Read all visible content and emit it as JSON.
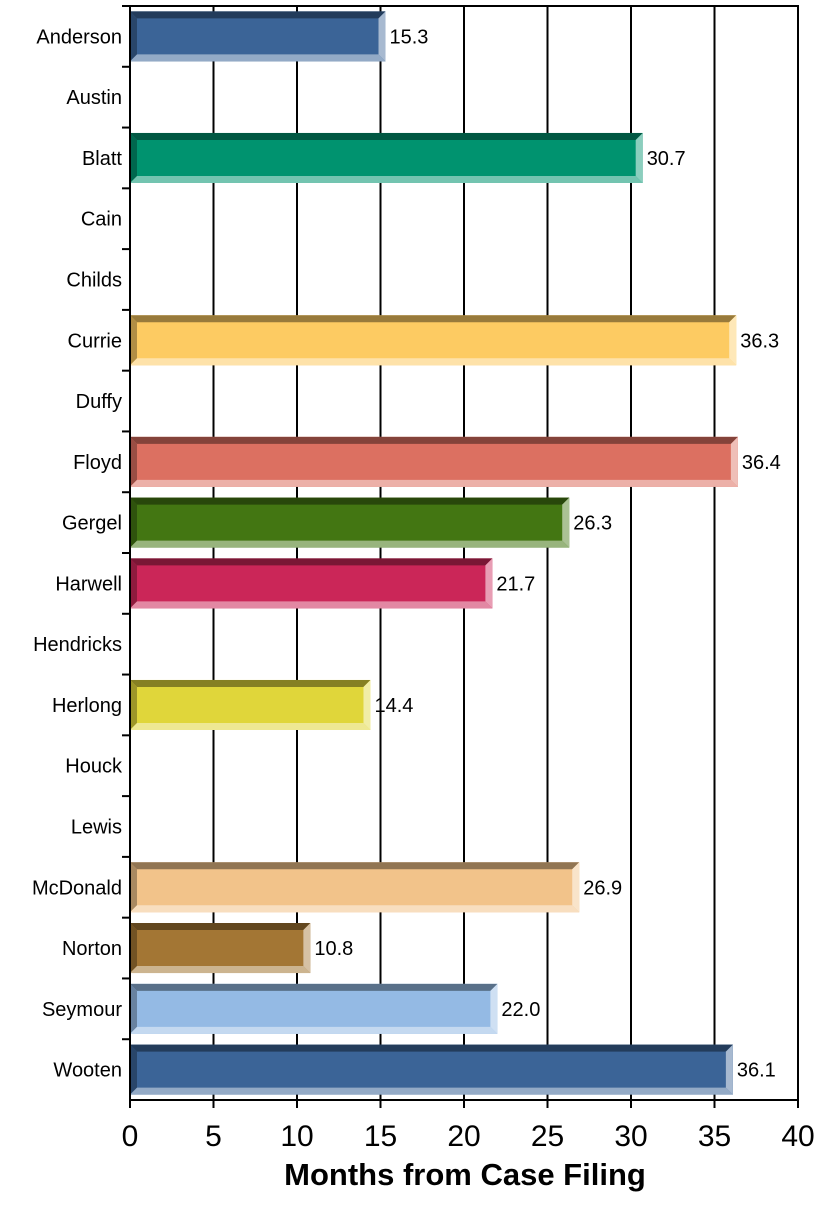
{
  "chart_data": {
    "type": "bar",
    "orientation": "horizontal",
    "title": "",
    "xlabel": "Months from Case Filing",
    "ylabel": "",
    "xlim": [
      0,
      40
    ],
    "x_ticks": [
      "0",
      "5",
      "10",
      "15",
      "20",
      "25",
      "30",
      "35",
      "40"
    ],
    "grid": "vertical lines",
    "legend": "none",
    "categories": [
      "Anderson",
      "Austin",
      "Blatt",
      "Cain",
      "Childs",
      "Currie",
      "Duffy",
      "Floyd",
      "Gergel",
      "Harwell",
      "Hendricks",
      "Herlong",
      "Houck",
      "Lewis",
      "McDonald",
      "Norton",
      "Seymour",
      "Wooten"
    ],
    "values": [
      15.3,
      null,
      30.7,
      null,
      null,
      36.3,
      null,
      36.4,
      26.3,
      21.7,
      null,
      14.4,
      null,
      null,
      26.9,
      10.8,
      22.0,
      36.1
    ],
    "value_labels": [
      "15.3",
      "",
      "30.7",
      "",
      "",
      "36.3",
      "",
      "36.4",
      "26.3",
      "21.7",
      "",
      "14.4",
      "",
      "",
      "26.9",
      "10.8",
      "22.0",
      "36.1"
    ],
    "colors": [
      "#3B6497",
      "#3B6497",
      "#00936F",
      "#00936F",
      "#00936F",
      "#FDCB62",
      "#FDCB62",
      "#DC7061",
      "#437612",
      "#CB2658",
      "#CB2658",
      "#E0D63A",
      "#E0D63A",
      "#E0D63A",
      "#F2C38A",
      "#A37634",
      "#94BAE4",
      "#3B6497"
    ]
  }
}
